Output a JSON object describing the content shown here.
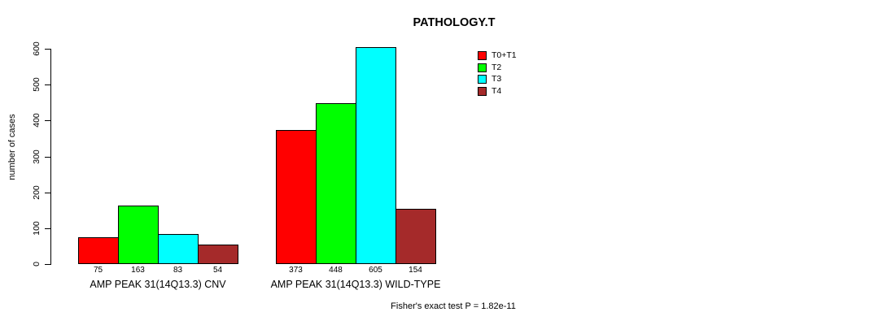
{
  "title": "PATHOLOGY.T",
  "chart_data": {
    "type": "bar",
    "title": "PATHOLOGY.T",
    "xlabel": "",
    "ylabel": "number of cases",
    "ylim": [
      0,
      600
    ],
    "yticks": [
      0,
      100,
      200,
      300,
      400,
      500,
      600
    ],
    "grid": false,
    "legend_position": "top-right",
    "series": [
      {
        "name": "T0+T1",
        "color": "#ff0000",
        "values": [
          75,
          373
        ]
      },
      {
        "name": "T2",
        "color": "#00ff00",
        "values": [
          163,
          448
        ]
      },
      {
        "name": "T3",
        "color": "#00ffff",
        "values": [
          83,
          605
        ]
      },
      {
        "name": "T4",
        "color": "#a52a2a",
        "values": [
          54,
          154
        ]
      }
    ],
    "groups": [
      {
        "label": "AMP PEAK 31(14Q13.3) CNV",
        "values": [
          75,
          163,
          83,
          54
        ]
      },
      {
        "label": "AMP PEAK 31(14Q13.3) WILD-TYPE",
        "values": [
          373,
          448,
          605,
          154
        ]
      }
    ],
    "bar_value_labels_shown": true,
    "annotation": "Fisher's exact test P = 1.82e-11",
    "axis_color": "#000000",
    "bar_border_color": "#000000"
  }
}
